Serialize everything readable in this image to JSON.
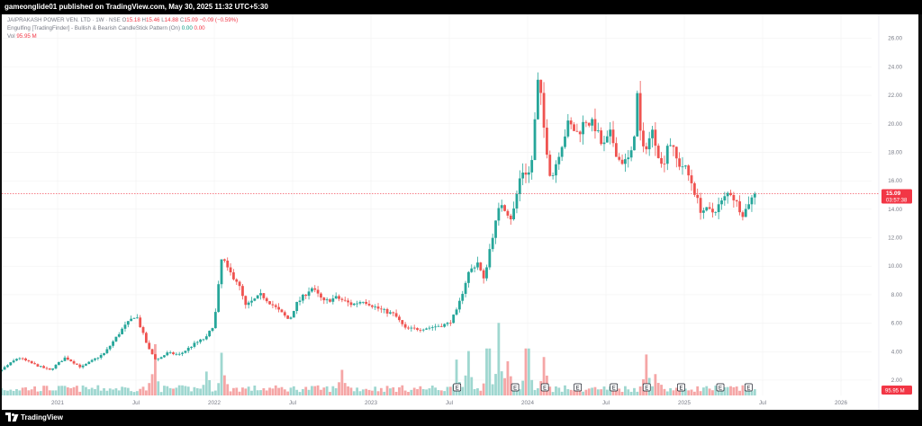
{
  "header": {
    "publish_line": "gameonglide01 published on TradingView.com, May 30, 2025 11:32 UTC+5:30",
    "symbol": "JAIPRAKASH POWER VEN. LTD · 1W · NSE",
    "ohlc": {
      "o_label": "O",
      "o": "15.18",
      "h_label": "H",
      "h": "15.46",
      "l_label": "L",
      "l": "14.88",
      "c_label": "C",
      "c": "15.09",
      "chg": "−0.09 (−0.59%)"
    },
    "indicator": "Engulfing [TradingFinder] - Bullish & Bearish CandleStick Pattern (On)",
    "indicator_v1": "0.00",
    "indicator_v2": "0.00",
    "vol_label": "Vol",
    "vol_value": "95.95 M"
  },
  "price_tag": {
    "price": "15.09",
    "countdown": "03:57:38"
  },
  "vol_tag": "95.95 M",
  "footer": {
    "brand": "TradingView"
  },
  "colors": {
    "up": "#26a69a",
    "down": "#ef5350",
    "up_vol": "#9fd7d0",
    "down_vol": "#f5a6a6",
    "last": "#f23645"
  },
  "chart_data": {
    "type": "candlestick",
    "symbol": "JAIPRAKASH POWER VEN. LTD",
    "interval": "1W",
    "exchange": "NSE",
    "ylim": [
      0.8,
      26.8
    ],
    "y_ticks": [
      "2.00",
      "4.00",
      "6.00",
      "8.00",
      "10.00",
      "12.00",
      "14.00",
      "16.00",
      "18.00",
      "20.00",
      "22.00",
      "24.00",
      "26.00"
    ],
    "x_ticks": [
      "2021",
      "Jul",
      "2022",
      "Jul",
      "2023",
      "Jul",
      "2024",
      "Jul",
      "2025",
      "Jul",
      "2026"
    ],
    "x_tick_positions": [
      2021.0,
      2021.5,
      2022.0,
      2022.5,
      2023.0,
      2023.5,
      2024.0,
      2024.5,
      2025.0,
      2025.5,
      2026.0
    ],
    "last_price": 15.09,
    "earnings_markers": [
      2023.55,
      2023.92,
      2024.11,
      2024.32,
      2024.55,
      2024.76,
      2024.98,
      2025.23,
      2025.41
    ],
    "earnings_label": "E",
    "anchors": [
      [
        2020.45,
        2.5
      ],
      [
        2020.6,
        2.4
      ],
      [
        2020.75,
        3.6
      ],
      [
        2020.85,
        3.1
      ],
      [
        2020.95,
        2.7
      ],
      [
        2021.05,
        3.6
      ],
      [
        2021.15,
        2.9
      ],
      [
        2021.3,
        3.9
      ],
      [
        2021.42,
        5.7
      ],
      [
        2021.5,
        6.6
      ],
      [
        2021.58,
        4.2
      ],
      [
        2021.63,
        3.4
      ],
      [
        2021.7,
        3.9
      ],
      [
        2021.78,
        3.8
      ],
      [
        2021.88,
        4.6
      ],
      [
        2021.95,
        5.0
      ],
      [
        2022.0,
        6.0
      ],
      [
        2022.05,
        10.8
      ],
      [
        2022.08,
        9.8
      ],
      [
        2022.15,
        8.9
      ],
      [
        2022.2,
        7.2
      ],
      [
        2022.3,
        8.0
      ],
      [
        2022.4,
        7.0
      ],
      [
        2022.48,
        6.2
      ],
      [
        2022.52,
        7.3
      ],
      [
        2022.62,
        8.5
      ],
      [
        2022.7,
        7.5
      ],
      [
        2022.78,
        7.8
      ],
      [
        2022.88,
        7.3
      ],
      [
        2022.95,
        7.6
      ],
      [
        2023.05,
        7.0
      ],
      [
        2023.15,
        6.6
      ],
      [
        2023.22,
        5.6
      ],
      [
        2023.3,
        5.6
      ],
      [
        2023.38,
        5.7
      ],
      [
        2023.47,
        5.9
      ],
      [
        2023.5,
        6.0
      ],
      [
        2023.55,
        6.9
      ],
      [
        2023.62,
        9.5
      ],
      [
        2023.68,
        10.3
      ],
      [
        2023.72,
        9.0
      ],
      [
        2023.77,
        11.9
      ],
      [
        2023.83,
        14.5
      ],
      [
        2023.9,
        13.3
      ],
      [
        2023.96,
        16.7
      ],
      [
        2024.02,
        16.5
      ],
      [
        2024.07,
        23.5
      ],
      [
        2024.1,
        20.0
      ],
      [
        2024.15,
        16.0
      ],
      [
        2024.2,
        18.0
      ],
      [
        2024.26,
        20.0
      ],
      [
        2024.32,
        19.3
      ],
      [
        2024.37,
        20.3
      ],
      [
        2024.43,
        19.8
      ],
      [
        2024.48,
        18.3
      ],
      [
        2024.53,
        19.3
      ],
      [
        2024.58,
        17.5
      ],
      [
        2024.63,
        17.3
      ],
      [
        2024.67,
        18.0
      ],
      [
        2024.7,
        22.0
      ],
      [
        2024.73,
        17.9
      ],
      [
        2024.8,
        19.5
      ],
      [
        2024.86,
        16.8
      ],
      [
        2024.9,
        19.0
      ],
      [
        2024.96,
        17.2
      ],
      [
        2025.0,
        17.0
      ],
      [
        2025.05,
        15.8
      ],
      [
        2025.1,
        14.0
      ],
      [
        2025.18,
        13.8
      ],
      [
        2025.24,
        14.5
      ],
      [
        2025.29,
        15.3
      ],
      [
        2025.33,
        14.5
      ],
      [
        2025.38,
        13.6
      ],
      [
        2025.41,
        14.5
      ],
      [
        2025.46,
        15.09
      ]
    ],
    "volume_peaks": [
      [
        2021.62,
        0.6
      ],
      [
        2021.95,
        0.28
      ],
      [
        2022.05,
        0.5
      ],
      [
        2022.82,
        0.3
      ],
      [
        2023.55,
        0.42
      ],
      [
        2023.62,
        0.52
      ],
      [
        2023.75,
        0.55
      ],
      [
        2023.82,
        0.85
      ],
      [
        2023.88,
        0.4
      ],
      [
        2024.0,
        0.55
      ],
      [
        2024.11,
        0.45
      ],
      [
        2024.76,
        0.48
      ],
      [
        2024.82,
        0.25
      ]
    ]
  }
}
